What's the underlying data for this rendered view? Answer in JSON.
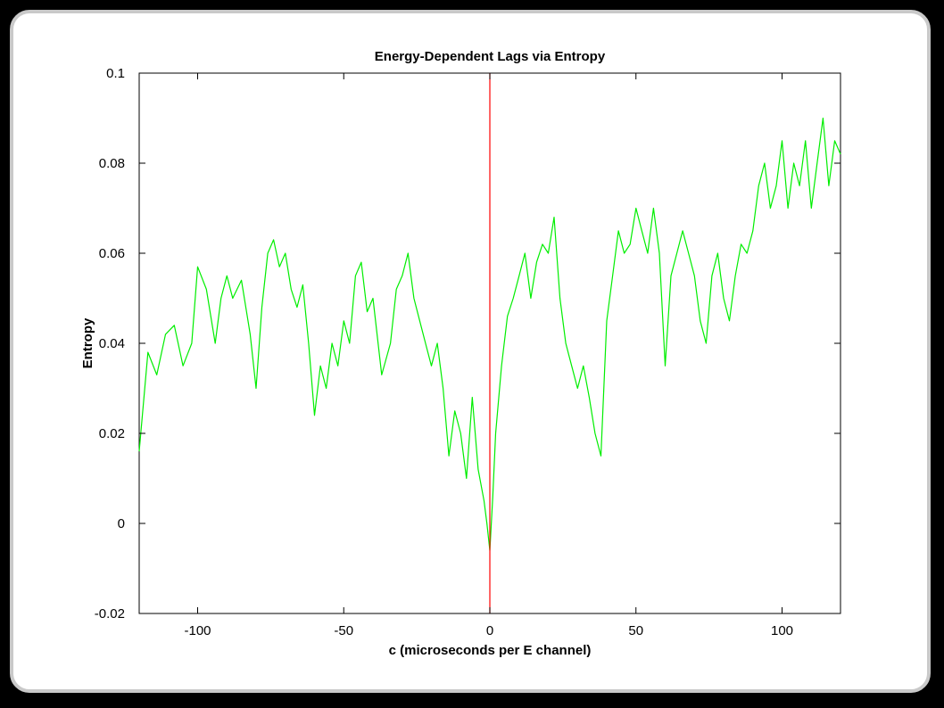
{
  "chart_data": {
    "type": "line",
    "title": "Energy-Dependent Lags via Entropy",
    "xlabel": "c (microseconds per E channel)",
    "ylabel": "Entropy",
    "xlim": [
      -120,
      120
    ],
    "ylim": [
      -0.02,
      0.1
    ],
    "xticks": [
      -100,
      -50,
      0,
      50,
      100
    ],
    "xtick_labels": [
      "-100",
      "-50",
      "0",
      "50",
      "100"
    ],
    "yticks": [
      -0.02,
      0,
      0.02,
      0.04,
      0.06,
      0.08,
      0.1
    ],
    "ytick_labels": [
      "-0.02",
      "0",
      "0.02",
      "0.04",
      "0.06",
      "0.08",
      "0.1"
    ],
    "grid": false,
    "reference_line": {
      "x": 0,
      "color": "#ff0000"
    },
    "series": [
      {
        "color": "#00ee00",
        "x": [
          -120,
          -117,
          -114,
          -111,
          -108,
          -105,
          -102,
          -100,
          -97,
          -94,
          -92,
          -90,
          -88,
          -85,
          -82,
          -80,
          -78,
          -76,
          -74,
          -72,
          -70,
          -68,
          -66,
          -64,
          -62,
          -60,
          -58,
          -56,
          -54,
          -52,
          -50,
          -48,
          -46,
          -44,
          -42,
          -40,
          -37,
          -34,
          -32,
          -30,
          -28,
          -26,
          -24,
          -22,
          -20,
          -18,
          -16,
          -14,
          -12,
          -10,
          -8,
          -6,
          -4,
          -2,
          -1,
          0,
          1,
          2,
          4,
          6,
          8,
          10,
          12,
          14,
          16,
          18,
          20,
          22,
          24,
          26,
          28,
          30,
          32,
          34,
          36,
          38,
          40,
          42,
          44,
          46,
          48,
          50,
          52,
          54,
          56,
          58,
          60,
          62,
          64,
          66,
          68,
          70,
          72,
          74,
          76,
          78,
          80,
          82,
          84,
          86,
          88,
          90,
          92,
          94,
          96,
          98,
          100,
          102,
          104,
          106,
          108,
          110,
          112,
          114,
          116,
          118,
          120
        ],
        "y": [
          0.016,
          0.038,
          0.033,
          0.042,
          0.044,
          0.035,
          0.04,
          0.057,
          0.052,
          0.04,
          0.05,
          0.055,
          0.05,
          0.054,
          0.042,
          0.03,
          0.048,
          0.06,
          0.063,
          0.057,
          0.06,
          0.052,
          0.048,
          0.053,
          0.04,
          0.024,
          0.035,
          0.03,
          0.04,
          0.035,
          0.045,
          0.04,
          0.055,
          0.058,
          0.047,
          0.05,
          0.033,
          0.04,
          0.052,
          0.055,
          0.06,
          0.05,
          0.045,
          0.04,
          0.035,
          0.04,
          0.03,
          0.015,
          0.025,
          0.02,
          0.01,
          0.028,
          0.012,
          0.005,
          0.0,
          -0.006,
          0.006,
          0.02,
          0.035,
          0.046,
          0.05,
          0.055,
          0.06,
          0.05,
          0.058,
          0.062,
          0.06,
          0.068,
          0.05,
          0.04,
          0.035,
          0.03,
          0.035,
          0.028,
          0.02,
          0.015,
          0.045,
          0.055,
          0.065,
          0.06,
          0.062,
          0.07,
          0.065,
          0.06,
          0.07,
          0.06,
          0.035,
          0.055,
          0.06,
          0.065,
          0.06,
          0.055,
          0.045,
          0.04,
          0.055,
          0.06,
          0.05,
          0.045,
          0.055,
          0.062,
          0.06,
          0.065,
          0.075,
          0.08,
          0.07,
          0.075,
          0.085,
          0.07,
          0.08,
          0.075,
          0.085,
          0.07,
          0.08,
          0.09,
          0.075,
          0.085,
          0.082
        ]
      }
    ]
  }
}
